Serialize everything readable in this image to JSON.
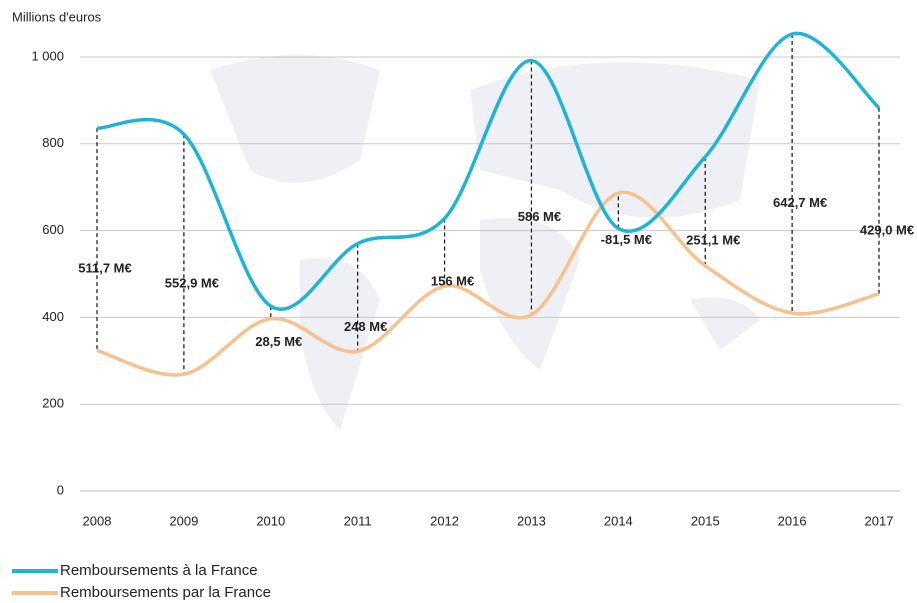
{
  "chart_data": {
    "type": "line",
    "y_label": "Millions d'euros",
    "categories": [
      "2008",
      "2009",
      "2010",
      "2011",
      "2012",
      "2013",
      "2014",
      "2015",
      "2016",
      "2017"
    ],
    "series": [
      {
        "name": "Remboursements à la France",
        "color": "#1fb3d6",
        "values": [
          836,
          822,
          426,
          570,
          628,
          992,
          605,
          770,
          1053,
          883
        ]
      },
      {
        "name": "Remboursements par la France",
        "color": "#f7c18f",
        "values": [
          324,
          269,
          397,
          322,
          472,
          406,
          686.5,
          519,
          410,
          454
        ]
      }
    ],
    "annotations": [
      "511,7 M€",
      "552,9 M€",
      "28,5 M€",
      "248 M€",
      "156 M€",
      "586 M€",
      "-81,5 M€",
      "251,1 M€",
      "642,7 M€",
      "429,0 M€"
    ],
    "ylim": [
      0,
      1000
    ],
    "yticks": [
      0,
      200,
      400,
      600,
      800,
      {
        "value": 1000,
        "label": "1 000"
      }
    ],
    "grid": true
  }
}
